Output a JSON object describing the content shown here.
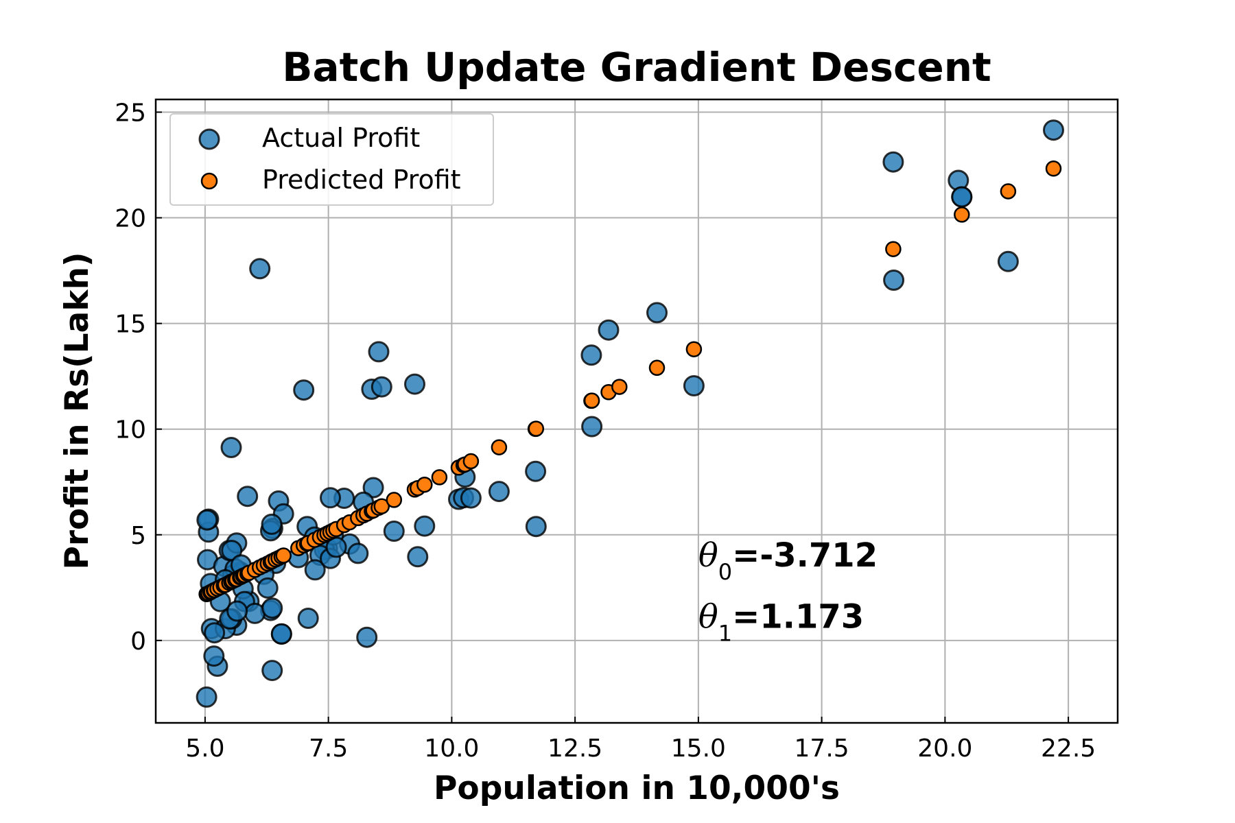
{
  "chart_data": {
    "type": "scatter",
    "title": "Batch Update Gradient Descent",
    "xlabel": "Population in 10,000's",
    "ylabel": "Profit in Rs(Lakh)",
    "xlim": [
      4.0,
      23.5
    ],
    "ylim": [
      -3.9,
      25.6
    ],
    "xticks": [
      5.0,
      7.5,
      10.0,
      12.5,
      15.0,
      17.5,
      20.0,
      22.5
    ],
    "xtick_labels": [
      "5.0",
      "7.5",
      "10.0",
      "12.5",
      "15.0",
      "17.5",
      "20.0",
      "22.5"
    ],
    "yticks": [
      0,
      5,
      10,
      15,
      20,
      25
    ],
    "ytick_labels": [
      "0",
      "5",
      "10",
      "15",
      "20",
      "25"
    ],
    "grid": true,
    "legend_position": "top-left",
    "series": [
      {
        "name": "Actual Profit",
        "color": "#1f77b4",
        "points": [
          [
            6.11,
            17.59
          ],
          [
            5.53,
            9.13
          ],
          [
            8.52,
            13.66
          ],
          [
            7.0,
            11.85
          ],
          [
            5.86,
            6.82
          ],
          [
            8.38,
            11.89
          ],
          [
            7.48,
            4.35
          ],
          [
            8.58,
            12.0
          ],
          [
            6.49,
            6.6
          ],
          [
            5.05,
            3.82
          ],
          [
            5.71,
            3.25
          ],
          [
            14.16,
            15.51
          ],
          [
            5.73,
            3.16
          ],
          [
            8.41,
            7.23
          ],
          [
            5.64,
            0.72
          ],
          [
            5.38,
            3.51
          ],
          [
            6.37,
            5.3
          ],
          [
            5.13,
            0.56
          ],
          [
            6.43,
            3.65
          ],
          [
            7.07,
            5.39
          ],
          [
            6.19,
            3.13
          ],
          [
            20.27,
            21.77
          ],
          [
            5.49,
            4.26
          ],
          [
            6.33,
            5.19
          ],
          [
            5.56,
            3.08
          ],
          [
            18.95,
            22.64
          ],
          [
            12.83,
            13.5
          ],
          [
            10.96,
            7.05
          ],
          [
            13.18,
            14.69
          ],
          [
            22.2,
            24.15
          ],
          [
            5.25,
            -1.22
          ],
          [
            6.59,
            5.99
          ],
          [
            9.25,
            12.13
          ],
          [
            5.89,
            1.85
          ],
          [
            8.21,
            6.54
          ],
          [
            7.93,
            4.56
          ],
          [
            8.1,
            4.12
          ],
          [
            5.61,
            3.39
          ],
          [
            12.84,
            10.12
          ],
          [
            6.35,
            5.5
          ],
          [
            5.41,
            0.56
          ],
          [
            6.89,
            3.92
          ],
          [
            11.71,
            5.39
          ],
          [
            5.77,
            2.44
          ],
          [
            7.82,
            6.73
          ],
          [
            7.09,
            1.05
          ],
          [
            5.07,
            5.13
          ],
          [
            5.8,
            1.84
          ],
          [
            11.7,
            8.0
          ],
          [
            5.54,
            1.02
          ],
          [
            7.54,
            6.75
          ],
          [
            5.31,
            1.84
          ],
          [
            7.42,
            4.29
          ],
          [
            7.6,
            4.99
          ],
          [
            6.33,
            1.42
          ],
          [
            6.36,
            -1.42
          ],
          [
            6.27,
            2.48
          ],
          [
            5.64,
            4.61
          ],
          [
            9.31,
            3.96
          ],
          [
            9.45,
            5.41
          ],
          [
            8.83,
            5.17
          ],
          [
            5.18,
            -0.74
          ],
          [
            21.28,
            17.93
          ],
          [
            14.91,
            12.05
          ],
          [
            18.96,
            17.05
          ],
          [
            7.22,
            4.89
          ],
          [
            5.07,
            5.74
          ],
          [
            5.54,
            4.26
          ],
          [
            20.34,
            20.99
          ],
          [
            10.14,
            6.68
          ],
          [
            7.33,
            4.03
          ],
          [
            6.01,
            1.28
          ],
          [
            7.23,
            3.34
          ],
          [
            5.03,
            -2.68
          ],
          [
            6.55,
            0.3
          ],
          [
            7.54,
            3.88
          ],
          [
            5.04,
            5.7
          ],
          [
            10.24,
            6.75
          ],
          [
            5.5,
            1.02
          ],
          [
            20.34,
            20.99
          ],
          [
            10.27,
            7.73
          ],
          [
            5.11,
            2.69
          ],
          [
            5.73,
            3.57
          ],
          [
            5.19,
            0.36
          ],
          [
            6.36,
            1.53
          ],
          [
            6.55,
            0.31
          ],
          [
            8.28,
            0.15
          ],
          [
            7.66,
            4.41
          ],
          [
            10.39,
            6.74
          ],
          [
            5.65,
            1.39
          ],
          [
            5.41,
            2.87
          ]
        ]
      },
      {
        "name": "Predicted Profit",
        "color": "#ff7f0e",
        "points": [
          [
            5.03,
            2.19
          ],
          [
            5.04,
            2.2
          ],
          [
            5.07,
            2.23
          ],
          [
            5.11,
            2.28
          ],
          [
            5.13,
            2.31
          ],
          [
            5.18,
            2.37
          ],
          [
            5.19,
            2.38
          ],
          [
            5.25,
            2.45
          ],
          [
            5.31,
            2.52
          ],
          [
            5.38,
            2.6
          ],
          [
            5.41,
            2.63
          ],
          [
            5.49,
            2.73
          ],
          [
            5.53,
            2.78
          ],
          [
            5.56,
            2.81
          ],
          [
            5.61,
            2.87
          ],
          [
            5.64,
            2.9
          ],
          [
            5.71,
            2.99
          ],
          [
            5.73,
            3.01
          ],
          [
            5.77,
            3.06
          ],
          [
            5.8,
            3.09
          ],
          [
            5.86,
            3.16
          ],
          [
            5.89,
            3.2
          ],
          [
            6.01,
            3.34
          ],
          [
            6.11,
            3.46
          ],
          [
            6.19,
            3.55
          ],
          [
            6.27,
            3.64
          ],
          [
            6.33,
            3.71
          ],
          [
            6.36,
            3.75
          ],
          [
            6.43,
            3.83
          ],
          [
            6.49,
            3.9
          ],
          [
            6.55,
            3.97
          ],
          [
            6.59,
            4.02
          ],
          [
            6.89,
            4.37
          ],
          [
            7.0,
            4.5
          ],
          [
            7.07,
            4.58
          ],
          [
            7.09,
            4.61
          ],
          [
            7.22,
            4.76
          ],
          [
            7.33,
            4.89
          ],
          [
            7.42,
            4.99
          ],
          [
            7.48,
            5.06
          ],
          [
            7.54,
            5.13
          ],
          [
            7.6,
            5.2
          ],
          [
            7.66,
            5.27
          ],
          [
            7.82,
            5.46
          ],
          [
            7.93,
            5.59
          ],
          [
            8.1,
            5.79
          ],
          [
            8.21,
            5.92
          ],
          [
            8.28,
            6.0
          ],
          [
            8.38,
            6.12
          ],
          [
            8.41,
            6.15
          ],
          [
            8.52,
            6.28
          ],
          [
            8.58,
            6.35
          ],
          [
            8.83,
            6.65
          ],
          [
            9.25,
            7.14
          ],
          [
            9.31,
            7.21
          ],
          [
            9.45,
            7.37
          ],
          [
            9.75,
            7.72
          ],
          [
            10.14,
            8.18
          ],
          [
            10.24,
            8.3
          ],
          [
            10.27,
            8.33
          ],
          [
            10.39,
            8.48
          ],
          [
            10.96,
            9.14
          ],
          [
            11.7,
            10.01
          ],
          [
            11.71,
            10.02
          ],
          [
            12.83,
            11.34
          ],
          [
            12.84,
            11.35
          ],
          [
            13.18,
            11.75
          ],
          [
            13.4,
            12.0
          ],
          [
            14.16,
            12.9
          ],
          [
            14.91,
            13.78
          ],
          [
            18.95,
            18.52
          ],
          [
            20.34,
            20.15
          ],
          [
            21.28,
            21.25
          ],
          [
            22.2,
            22.33
          ]
        ]
      }
    ],
    "annotations": [
      {
        "var": "θ",
        "sub": "0",
        "value": "=-3.712",
        "x": 15.0,
        "y": 3.5
      },
      {
        "var": "θ",
        "sub": "1",
        "value": "=1.173",
        "x": 15.0,
        "y": 0.6
      }
    ]
  }
}
